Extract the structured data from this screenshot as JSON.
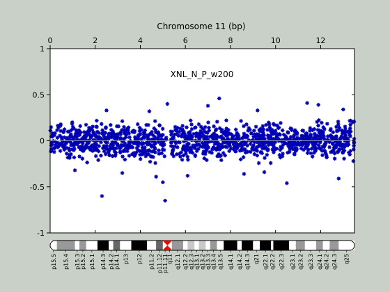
{
  "window": {
    "background": "#c8d0c8"
  },
  "chart_data": {
    "type": "scatter",
    "xlabel": "Chromosome 11 (bp)",
    "ylabel": "",
    "annotation": "XNL_N_P_w200",
    "xlim": [
      0,
      13.5
    ],
    "ylim": [
      -1,
      1
    ],
    "x_ticks": [
      0,
      2,
      4,
      6,
      8,
      10,
      12
    ],
    "y_ticks": [
      1,
      0.5,
      0,
      -0.5,
      -1
    ],
    "y_tick_labels": [
      "1",
      "0.5",
      "0",
      "-0.5",
      "-1"
    ],
    "x_axis_position": "top",
    "grid": false,
    "legend": "none",
    "series": [
      {
        "color": "#0000b4",
        "marker": "asterisk",
        "bulk": {
          "x_range": [
            0,
            13.5
          ],
          "y_mean": 0,
          "y_spread": 0.27,
          "gap_x": [
            5.15,
            5.35
          ]
        },
        "outliers": [
          {
            "x": 2.3,
            "y": -0.6
          },
          {
            "x": 5.1,
            "y": -0.65
          },
          {
            "x": 7.5,
            "y": 0.46
          },
          {
            "x": 7.0,
            "y": 0.38
          },
          {
            "x": 11.4,
            "y": 0.41
          },
          {
            "x": 11.9,
            "y": 0.39
          },
          {
            "x": 2.5,
            "y": 0.33
          },
          {
            "x": 4.4,
            "y": 0.32
          },
          {
            "x": 5.2,
            "y": 0.4
          },
          {
            "x": 8.6,
            "y": -0.36
          },
          {
            "x": 9.5,
            "y": -0.34
          },
          {
            "x": 10.5,
            "y": -0.46
          },
          {
            "x": 4.7,
            "y": -0.39
          },
          {
            "x": 5.0,
            "y": -0.45
          },
          {
            "x": 12.8,
            "y": -0.41
          },
          {
            "x": 1.1,
            "y": -0.32
          },
          {
            "x": 3.2,
            "y": -0.35
          },
          {
            "x": 6.1,
            "y": -0.38
          },
          {
            "x": 13.0,
            "y": 0.34
          },
          {
            "x": 9.2,
            "y": 0.33
          }
        ]
      }
    ],
    "reference_line": {
      "y": 0,
      "color": "#9aa0a6"
    },
    "ideogram": {
      "centromere_x": 5.2,
      "bands": [
        {
          "name": "p15.5",
          "start": 0.0,
          "end": 0.3,
          "stain": "gneg"
        },
        {
          "name": "p15.4",
          "start": 0.3,
          "end": 1.1,
          "stain": "gpos50"
        },
        {
          "name": "p15.3",
          "start": 1.1,
          "end": 1.3,
          "stain": "gneg"
        },
        {
          "name": "p15.2",
          "start": 1.3,
          "end": 1.6,
          "stain": "gpos50"
        },
        {
          "name": "p15.1",
          "start": 1.6,
          "end": 2.1,
          "stain": "gneg"
        },
        {
          "name": "p14.3",
          "start": 2.1,
          "end": 2.6,
          "stain": "gpos100"
        },
        {
          "name": "p14.2",
          "start": 2.6,
          "end": 2.8,
          "stain": "gneg"
        },
        {
          "name": "p14.1",
          "start": 2.8,
          "end": 3.1,
          "stain": "gpos75"
        },
        {
          "name": "p13",
          "start": 3.1,
          "end": 3.6,
          "stain": "gneg"
        },
        {
          "name": "p12",
          "start": 3.6,
          "end": 4.3,
          "stain": "gpos100"
        },
        {
          "name": "p11.2",
          "start": 4.3,
          "end": 4.7,
          "stain": "gneg"
        },
        {
          "name": "p11.12",
          "start": 4.7,
          "end": 5.0,
          "stain": "gpos75"
        },
        {
          "name": "p11.11",
          "start": 5.0,
          "end": 5.2,
          "stain": "gneg"
        },
        {
          "name": "q11",
          "start": 5.2,
          "end": 5.4,
          "stain": "gneg"
        },
        {
          "name": "q12.1",
          "start": 5.4,
          "end": 5.9,
          "stain": "gpos50"
        },
        {
          "name": "q12.2",
          "start": 5.9,
          "end": 6.1,
          "stain": "gneg"
        },
        {
          "name": "q12.3",
          "start": 6.1,
          "end": 6.4,
          "stain": "gpos25"
        },
        {
          "name": "q13.1",
          "start": 6.4,
          "end": 6.6,
          "stain": "gneg"
        },
        {
          "name": "q13.2",
          "start": 6.6,
          "end": 6.9,
          "stain": "gpos25"
        },
        {
          "name": "q13.3",
          "start": 6.9,
          "end": 7.1,
          "stain": "gneg"
        },
        {
          "name": "q13.4",
          "start": 7.1,
          "end": 7.4,
          "stain": "gpos50"
        },
        {
          "name": "q13.5",
          "start": 7.4,
          "end": 7.7,
          "stain": "gneg"
        },
        {
          "name": "q14.1",
          "start": 7.7,
          "end": 8.3,
          "stain": "gpos100"
        },
        {
          "name": "q14.2",
          "start": 8.3,
          "end": 8.5,
          "stain": "gneg"
        },
        {
          "name": "q14.3",
          "start": 8.5,
          "end": 9.0,
          "stain": "gpos100"
        },
        {
          "name": "q21",
          "start": 9.0,
          "end": 9.3,
          "stain": "gneg"
        },
        {
          "name": "q22.1",
          "start": 9.3,
          "end": 9.8,
          "stain": "gpos100"
        },
        {
          "name": "q22.2",
          "start": 9.8,
          "end": 9.9,
          "stain": "gneg"
        },
        {
          "name": "q22.3",
          "start": 9.9,
          "end": 10.6,
          "stain": "gpos100"
        },
        {
          "name": "q23.1",
          "start": 10.6,
          "end": 10.9,
          "stain": "gneg"
        },
        {
          "name": "q23.2",
          "start": 10.9,
          "end": 11.3,
          "stain": "gpos50"
        },
        {
          "name": "q23.3",
          "start": 11.3,
          "end": 11.8,
          "stain": "gneg"
        },
        {
          "name": "q24.1",
          "start": 11.8,
          "end": 12.1,
          "stain": "gpos50"
        },
        {
          "name": "q24.2",
          "start": 12.1,
          "end": 12.4,
          "stain": "gneg"
        },
        {
          "name": "q24.3",
          "start": 12.4,
          "end": 12.8,
          "stain": "gpos50"
        },
        {
          "name": "q25",
          "start": 12.8,
          "end": 13.5,
          "stain": "gneg"
        }
      ]
    }
  }
}
